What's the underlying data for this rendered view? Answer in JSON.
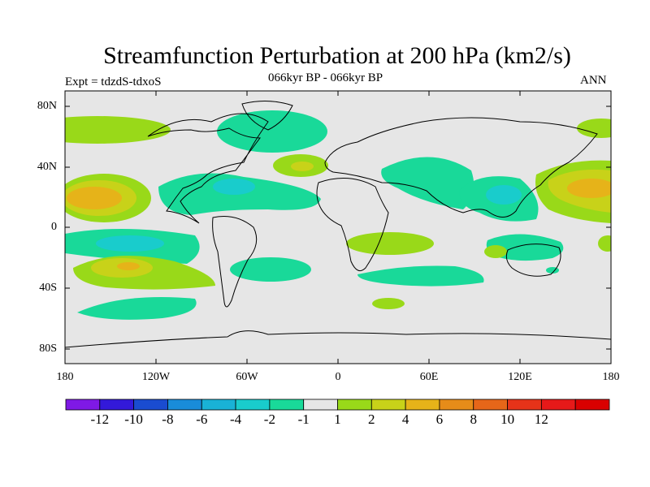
{
  "title": "Streamfunction Perturbation at 200 hPa (km2/s)",
  "left_label": "Expt = tdzdS-tdxoS",
  "center_label": "066kyr BP - 066kyr BP",
  "right_label": "ANN",
  "map": {
    "lat_ticks": [
      "80N",
      "40N",
      "0",
      "40S",
      "80S"
    ],
    "lon_ticks": [
      "180",
      "120W",
      "60W",
      "0",
      "60E",
      "120E",
      "180"
    ],
    "background_color": "#e6e6e6",
    "coastline_color": "#000000"
  },
  "colorbar": {
    "colors": [
      "#7f19e5",
      "#3319d9",
      "#1a4cd0",
      "#198cd9",
      "#19b2d6",
      "#19cccc",
      "#19d999",
      "#e6e6e6",
      "#99d919",
      "#c8d219",
      "#e6b319",
      "#e68c19",
      "#e66619",
      "#e63319",
      "#e61919",
      "#d90000"
    ],
    "labels": [
      "-12",
      "-10",
      "-8",
      "-6",
      "-4",
      "-2",
      "-1",
      "1",
      "2",
      "4",
      "6",
      "8",
      "10",
      "12"
    ]
  }
}
